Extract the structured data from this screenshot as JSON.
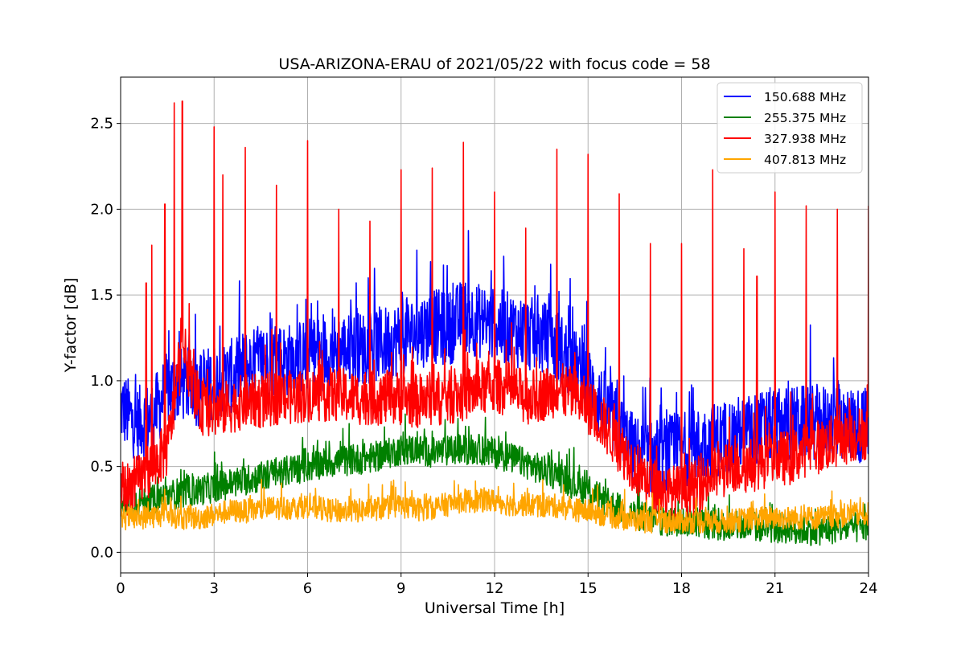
{
  "chart_data": {
    "type": "line",
    "title": "USA-ARIZONA-ERAU of 2021/05/22 with focus code = 58",
    "xlabel": "Universal Time [h]",
    "ylabel": "Y-factor [dB]",
    "xlim": [
      0,
      24
    ],
    "ylim": [
      -0.12,
      2.77
    ],
    "xticks": [
      0,
      3,
      6,
      9,
      12,
      15,
      18,
      21,
      24
    ],
    "xtick_labels": [
      "0",
      "3",
      "6",
      "9",
      "12",
      "15",
      "18",
      "21",
      "24"
    ],
    "yticks": [
      0.0,
      0.5,
      1.0,
      1.5,
      2.0,
      2.5
    ],
    "ytick_labels": [
      "0.0",
      "0.5",
      "1.0",
      "1.5",
      "2.0",
      "2.5"
    ],
    "grid": true,
    "legend_position": "top-right",
    "series": [
      {
        "name": "150.688 MHz",
        "color": "#0000ff",
        "noise": 0.22,
        "x": [
          0,
          0.5,
          1,
          1.5,
          2,
          2.5,
          3,
          3.5,
          4,
          4.5,
          5,
          5.5,
          6,
          6.5,
          7,
          7.5,
          8,
          8.5,
          9,
          9.5,
          10,
          10.5,
          11,
          11.5,
          12,
          12.5,
          13,
          13.5,
          14,
          14.5,
          15,
          15.5,
          16,
          16.5,
          17,
          17.5,
          18,
          18.5,
          19,
          19.5,
          20,
          20.5,
          21,
          21.5,
          22,
          22.5,
          23,
          23.5,
          24
        ],
        "y": [
          0.85,
          0.75,
          0.78,
          0.95,
          0.98,
          0.95,
          1.0,
          1.02,
          1.08,
          1.1,
          1.12,
          1.12,
          1.15,
          1.16,
          1.18,
          1.18,
          1.2,
          1.22,
          1.25,
          1.28,
          1.32,
          1.3,
          1.38,
          1.35,
          1.32,
          1.3,
          1.28,
          1.25,
          1.2,
          1.1,
          0.98,
          0.85,
          0.72,
          0.58,
          0.55,
          0.58,
          0.6,
          0.62,
          0.65,
          0.68,
          0.7,
          0.72,
          0.75,
          0.75,
          0.76,
          0.76,
          0.76,
          0.75,
          0.72
        ]
      },
      {
        "name": "255.375 MHz",
        "color": "#008000",
        "noise": 0.09,
        "x": [
          0,
          0.5,
          1,
          1.5,
          2,
          2.5,
          3,
          3.5,
          4,
          4.5,
          5,
          5.5,
          6,
          6.5,
          7,
          7.5,
          8,
          8.5,
          9,
          9.5,
          10,
          10.5,
          11,
          11.5,
          12,
          12.5,
          13,
          13.5,
          14,
          14.5,
          15,
          15.5,
          16,
          16.5,
          17,
          17.5,
          18,
          18.5,
          19,
          19.5,
          20,
          20.5,
          21,
          21.5,
          22,
          22.5,
          23,
          23.5,
          24
        ],
        "y": [
          0.32,
          0.3,
          0.3,
          0.33,
          0.35,
          0.36,
          0.38,
          0.4,
          0.42,
          0.44,
          0.46,
          0.48,
          0.5,
          0.52,
          0.53,
          0.54,
          0.55,
          0.57,
          0.6,
          0.6,
          0.58,
          0.59,
          0.6,
          0.6,
          0.58,
          0.55,
          0.52,
          0.48,
          0.45,
          0.4,
          0.36,
          0.3,
          0.25,
          0.22,
          0.2,
          0.18,
          0.18,
          0.18,
          0.16,
          0.15,
          0.15,
          0.15,
          0.14,
          0.14,
          0.13,
          0.13,
          0.14,
          0.14,
          0.15
        ]
      },
      {
        "name": "327.938 MHz",
        "color": "#ff0000",
        "noise": 0.16,
        "x": [
          0,
          0.5,
          1,
          1.5,
          2,
          2.5,
          3,
          3.5,
          4,
          4.5,
          5,
          5.5,
          6,
          6.5,
          7,
          7.5,
          8,
          8.5,
          9,
          9.5,
          10,
          10.5,
          11,
          11.5,
          12,
          12.5,
          13,
          13.5,
          14,
          14.5,
          15,
          15.5,
          16,
          16.5,
          17,
          17.5,
          18,
          18.5,
          19,
          19.5,
          20,
          20.5,
          21,
          21.5,
          22,
          22.5,
          23,
          23.5,
          24
        ],
        "y": [
          0.35,
          0.4,
          0.5,
          0.6,
          1.2,
          0.85,
          0.82,
          0.85,
          0.88,
          0.88,
          0.9,
          0.9,
          0.92,
          0.92,
          0.92,
          0.9,
          0.9,
          0.9,
          0.9,
          0.88,
          0.9,
          0.9,
          0.92,
          0.95,
          0.97,
          0.95,
          0.9,
          0.92,
          0.95,
          0.92,
          0.85,
          0.75,
          0.62,
          0.5,
          0.4,
          0.35,
          0.35,
          0.38,
          0.45,
          0.48,
          0.5,
          0.52,
          0.55,
          0.55,
          0.6,
          0.62,
          0.65,
          0.68,
          0.7
        ],
        "spikes": [
          {
            "x": 0.82,
            "y": 1.57
          },
          {
            "x": 1.0,
            "y": 1.79
          },
          {
            "x": 1.42,
            "y": 2.03
          },
          {
            "x": 1.72,
            "y": 2.62
          },
          {
            "x": 1.98,
            "y": 2.63
          },
          {
            "x": 2.2,
            "y": 1.45
          },
          {
            "x": 3.0,
            "y": 2.48
          },
          {
            "x": 3.28,
            "y": 2.2
          },
          {
            "x": 4.0,
            "y": 2.36
          },
          {
            "x": 5.0,
            "y": 2.14
          },
          {
            "x": 6.0,
            "y": 2.4
          },
          {
            "x": 7.0,
            "y": 2.0
          },
          {
            "x": 8.0,
            "y": 1.93
          },
          {
            "x": 9.0,
            "y": 2.23
          },
          {
            "x": 10.0,
            "y": 2.24
          },
          {
            "x": 11.0,
            "y": 2.39
          },
          {
            "x": 12.0,
            "y": 2.1
          },
          {
            "x": 13.0,
            "y": 1.89
          },
          {
            "x": 14.0,
            "y": 2.35
          },
          {
            "x": 15.0,
            "y": 2.32
          },
          {
            "x": 16.0,
            "y": 2.09
          },
          {
            "x": 17.0,
            "y": 1.8
          },
          {
            "x": 18.0,
            "y": 1.8
          },
          {
            "x": 19.0,
            "y": 2.23
          },
          {
            "x": 20.0,
            "y": 1.77
          },
          {
            "x": 20.42,
            "y": 1.61
          },
          {
            "x": 21.0,
            "y": 2.1
          },
          {
            "x": 22.0,
            "y": 2.02
          },
          {
            "x": 23.0,
            "y": 2.0
          },
          {
            "x": 24.0,
            "y": 2.02
          }
        ]
      },
      {
        "name": "407.813 MHz",
        "color": "#ffa500",
        "noise": 0.07,
        "x": [
          0,
          0.5,
          1,
          1.5,
          2,
          2.5,
          3,
          3.5,
          4,
          4.5,
          5,
          5.5,
          6,
          6.5,
          7,
          7.5,
          8,
          8.5,
          9,
          9.5,
          10,
          10.5,
          11,
          11.5,
          12,
          12.5,
          13,
          13.5,
          14,
          14.5,
          15,
          15.5,
          16,
          16.5,
          17,
          17.5,
          18,
          18.5,
          19,
          19.5,
          20,
          20.5,
          21,
          21.5,
          22,
          22.5,
          23,
          23.5,
          24
        ],
        "y": [
          0.2,
          0.2,
          0.21,
          0.22,
          0.2,
          0.2,
          0.22,
          0.24,
          0.24,
          0.25,
          0.26,
          0.26,
          0.27,
          0.25,
          0.24,
          0.24,
          0.25,
          0.26,
          0.27,
          0.25,
          0.26,
          0.28,
          0.3,
          0.3,
          0.3,
          0.28,
          0.28,
          0.27,
          0.27,
          0.25,
          0.24,
          0.22,
          0.2,
          0.19,
          0.18,
          0.18,
          0.18,
          0.18,
          0.18,
          0.18,
          0.19,
          0.2,
          0.2,
          0.2,
          0.2,
          0.2,
          0.21,
          0.22,
          0.22
        ]
      }
    ]
  }
}
